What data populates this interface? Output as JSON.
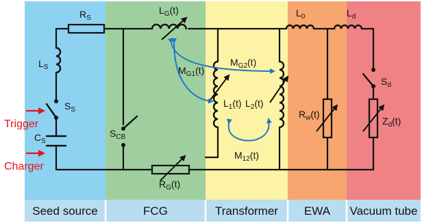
{
  "colors": {
    "seed_source_bg": "#8ed2f2",
    "fcg_bg": "#9fcf9f",
    "transformer_bg": "#fdf3a4",
    "ewa_bg": "#f6a66e",
    "vacuum_tube_bg": "#ef8285",
    "label_strip_bg": "#b8ddf0",
    "wire": "#111111",
    "mutual_arrow": "#1f78c8",
    "input_arrow": "#e3141b"
  },
  "panels": {
    "seed_source": "Seed source",
    "fcg": "FCG",
    "transformer": "Transformer",
    "ewa": "EWA",
    "vacuum_tube": "Vacuum tube"
  },
  "inputs": {
    "trigger": "Trigger",
    "charger": "Charger"
  },
  "components": {
    "rs": {
      "main": "R",
      "sub": "S"
    },
    "ls": {
      "main": "L",
      "sub": "S"
    },
    "ss": {
      "main": "S",
      "sub": "S"
    },
    "cs": {
      "main": "C",
      "sub": "S"
    },
    "scb": {
      "main": "S",
      "sub": "CB"
    },
    "lg": {
      "main": "L",
      "sub": "G",
      "suffix": "(t)"
    },
    "rg": {
      "main": "R",
      "sub": "G",
      "suffix": "(t)"
    },
    "mg1": {
      "main": "M",
      "sub": "G1",
      "suffix": "(t)"
    },
    "mg2": {
      "main": "M",
      "sub": "G2",
      "suffix": "(t)"
    },
    "l1": {
      "main": "L",
      "sub": "1",
      "suffix": "(t)"
    },
    "l2": {
      "main": "L",
      "sub": "2",
      "suffix": "(t)"
    },
    "m12": {
      "main": "M",
      "sub": "12",
      "suffix": "(t)"
    },
    "l0": {
      "main": "L",
      "sub": "0"
    },
    "rw": {
      "main": "R",
      "sub": "w",
      "suffix": "(t)"
    },
    "ld": {
      "main": "L",
      "sub": "d"
    },
    "sd": {
      "main": "S",
      "sub": "d"
    },
    "zd": {
      "main": "Z",
      "sub": "d",
      "suffix": "(t)"
    }
  }
}
